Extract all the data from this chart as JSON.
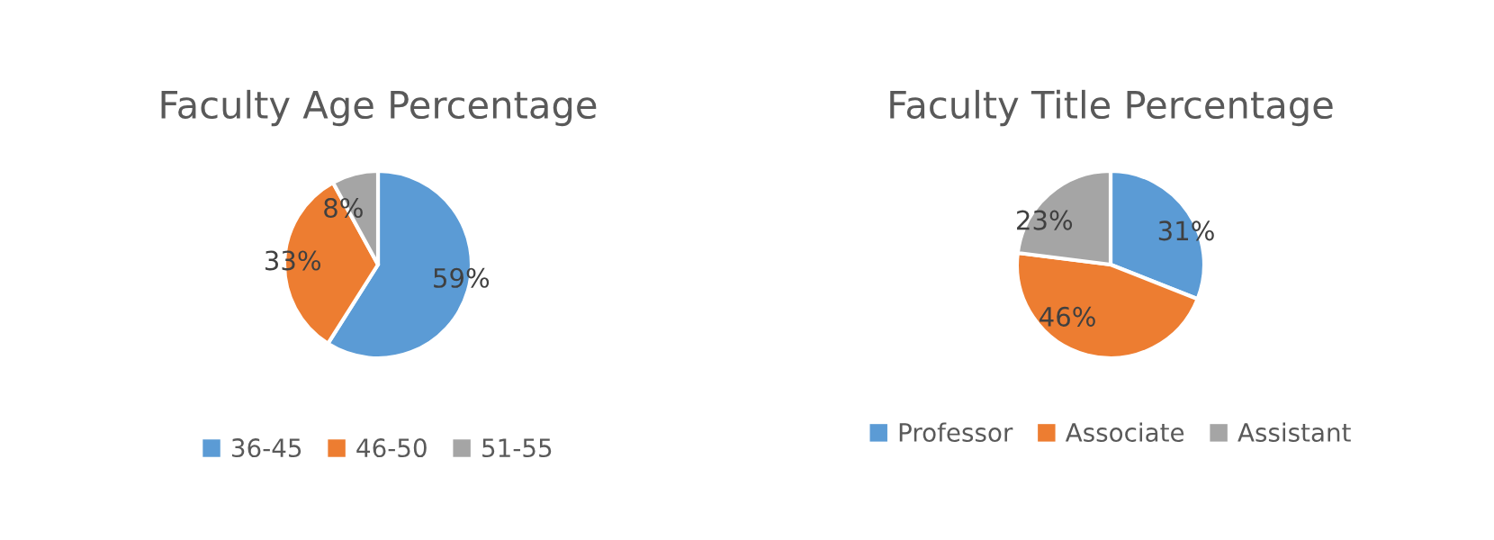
{
  "chart_data": [
    {
      "type": "pie",
      "title": "Faculty Age Percentage",
      "categories": [
        "36-45",
        "46-50",
        "51-55"
      ],
      "values": [
        59,
        33,
        8
      ],
      "value_labels": [
        "59%",
        "33%",
        "8%"
      ],
      "colors": [
        "#5b9bd5",
        "#ed7d31",
        "#a5a5a5"
      ],
      "legend": "bottom"
    },
    {
      "type": "pie",
      "title": "Faculty Title Percentage",
      "categories": [
        "Professor",
        "Associate",
        "Assistant"
      ],
      "values": [
        31,
        46,
        23
      ],
      "value_labels": [
        "31%",
        "46%",
        "23%"
      ],
      "colors": [
        "#5b9bd5",
        "#ed7d31",
        "#a5a5a5"
      ],
      "legend": "bottom"
    }
  ]
}
